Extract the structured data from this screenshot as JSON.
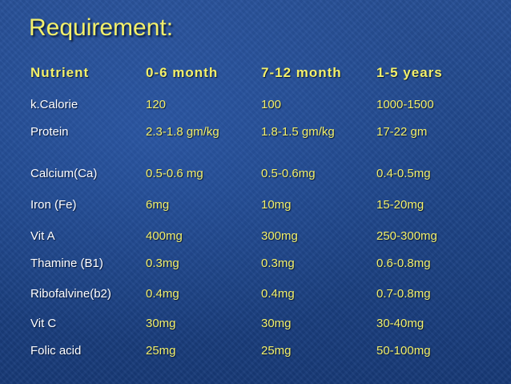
{
  "title": "Requirement:",
  "header": [
    "Nutrient",
    "0-6 month",
    "7-12 month",
    "1-5 years"
  ],
  "rows": [
    {
      "nutrient": "k.Calorie",
      "m0_6": "120",
      "m7_12": "100",
      "y1_5": "1000-1500"
    },
    {
      "nutrient": "Protein",
      "m0_6": "2.3-1.8 gm/kg",
      "m7_12": "1.8-1.5 gm/kg",
      "y1_5": "17-22 gm"
    },
    {
      "nutrient": "Calcium(Ca)",
      "m0_6": "0.5-0.6 mg",
      "m7_12": "0.5-0.6mg",
      "y1_5": "0.4-0.5mg"
    },
    {
      "nutrient": "Iron (Fe)",
      "m0_6": "6mg",
      "m7_12": "10mg",
      "y1_5": "15-20mg"
    },
    {
      "nutrient": "Vit A",
      "m0_6": "400mg",
      "m7_12": "300mg",
      "y1_5": "250-300mg"
    },
    {
      "nutrient": "Thamine (B1)",
      "m0_6": "0.3mg",
      "m7_12": "0.3mg",
      "y1_5": "0.6-0.8mg"
    },
    {
      "nutrient": "Ribofalvine(b2)",
      "m0_6": "0.4mg",
      "m7_12": "0.4mg",
      "y1_5": "0.7-0.8mg"
    },
    {
      "nutrient": "Vit C",
      "m0_6": "30mg",
      "m7_12": "30mg",
      "y1_5": "30-40mg"
    },
    {
      "nutrient": "Folic acid",
      "m0_6": "25mg",
      "m7_12": "25mg",
      "y1_5": "50-100mg"
    }
  ],
  "colors": {
    "accent": "#f3f06a",
    "text": "#ffffff",
    "background": "#224a8e"
  }
}
